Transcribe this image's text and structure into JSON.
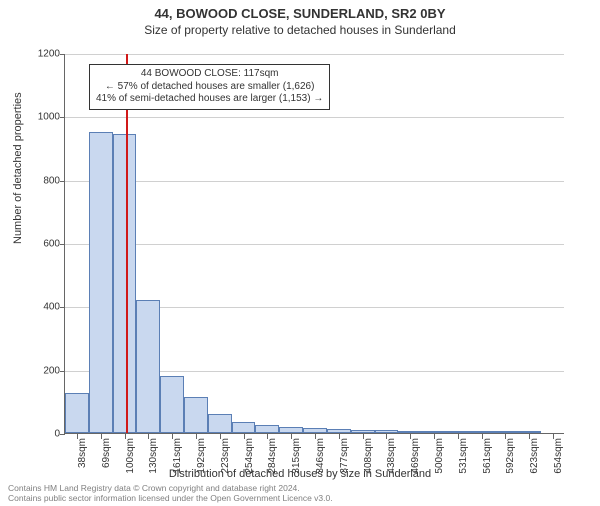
{
  "title": "44, BOWOOD CLOSE, SUNDERLAND, SR2 0BY",
  "subtitle": "Size of property relative to detached houses in Sunderland",
  "ylabel": "Number of detached properties",
  "xlabel": "Distribution of detached houses by size in Sunderland",
  "footer_line1": "Contains HM Land Registry data © Crown copyright and database right 2024.",
  "footer_line2": "Contains public sector information licensed under the Open Government Licence v3.0.",
  "chart": {
    "type": "histogram",
    "ylim": [
      0,
      1200
    ],
    "ytick_step": 200,
    "bar_fill": "#c9d8ef",
    "bar_stroke": "#5b7fb5",
    "grid_color": "#d0d0d0",
    "highlight_color": "#d11919",
    "highlight_x_value": 117,
    "x_start": 38,
    "x_step": 31,
    "categories": [
      "38sqm",
      "69sqm",
      "100sqm",
      "130sqm",
      "161sqm",
      "192sqm",
      "223sqm",
      "254sqm",
      "284sqm",
      "315sqm",
      "346sqm",
      "377sqm",
      "408sqm",
      "438sqm",
      "469sqm",
      "500sqm",
      "531sqm",
      "561sqm",
      "592sqm",
      "623sqm",
      "654sqm"
    ],
    "values": [
      125,
      950,
      945,
      420,
      180,
      115,
      60,
      35,
      25,
      18,
      15,
      12,
      10,
      8,
      2,
      1,
      0,
      0,
      1,
      0
    ],
    "bar_width_ratio": 1.0,
    "background_color": "#ffffff",
    "title_fontsize": 13,
    "subtitle_fontsize": 12,
    "label_fontsize": 11,
    "tick_fontsize": 10
  },
  "callout": {
    "line1": "44 BOWOOD CLOSE: 117sqm",
    "line2": "← 57% of detached houses are smaller (1,626)",
    "line3": "41% of semi-detached houses are larger (1,153) →"
  }
}
